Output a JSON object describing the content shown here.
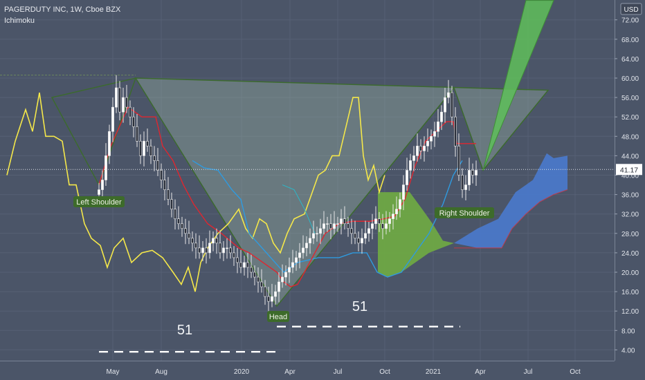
{
  "header": {
    "symbol_line": "PAGERDUTY INC, 1W, Cboe BZX",
    "indicator": "Ichimoku"
  },
  "currency": "USD",
  "current_price": "41.17",
  "annotations": {
    "left_shoulder": "Left Shoulder",
    "head": "Head",
    "right_shoulder": "Right Shoulder",
    "count_left": "51",
    "count_right": "51"
  },
  "colors": {
    "background": "#4b5568",
    "tenkan": "#e0262f",
    "kijun": "#2f9be0",
    "chikou": "#f5e84a",
    "cloud_bull": "#6ea845",
    "cloud_bear": "#4a78c8",
    "pattern_fill": "#9cb6a6",
    "target_fill": "#5fc05a",
    "label_bg": "#3d6b2a"
  },
  "chart_data": {
    "type": "candlestick",
    "title": "PAGERDUTY INC, 1W, Cboe BZX",
    "indicator": "Ichimoku",
    "y_axis": {
      "ticks": [
        "72.00",
        "68.00",
        "64.00",
        "60.00",
        "56.00",
        "52.00",
        "48.00",
        "44.00",
        "40.00",
        "36.00",
        "32.00",
        "28.00",
        "24.00",
        "20.00",
        "16.00",
        "12.00",
        "8.00",
        "4.00"
      ],
      "range": [
        1,
        75
      ]
    },
    "x_axis": {
      "ticks": [
        "May",
        "Aug",
        "2020",
        "Apr",
        "Jul",
        "Oct",
        "2021",
        "Apr",
        "Jul",
        "Oct"
      ]
    },
    "price_path": [
      [
        "Apr 2019",
        38
      ],
      [
        "May 2019",
        58
      ],
      [
        "Jun 2019",
        48
      ],
      [
        "Aug 2019",
        38
      ],
      [
        "Oct 2019",
        24
      ],
      [
        "Dec 2019",
        23
      ],
      [
        "Mar 2020",
        13
      ],
      [
        "Apr 2020",
        20
      ],
      [
        "Jun 2020",
        30
      ],
      [
        "Sep 2020",
        26
      ],
      [
        "Oct 2020",
        32
      ],
      [
        "Nov 2020",
        44
      ],
      [
        "Dec 2020",
        47
      ],
      [
        "Feb 2021",
        57
      ],
      [
        "Mar 2021",
        37
      ],
      [
        "Mar 2021",
        41
      ]
    ],
    "last_price": 41.17,
    "pattern": "Inverse head and shoulders",
    "neckline_level": 60,
    "head_low": 13
  }
}
